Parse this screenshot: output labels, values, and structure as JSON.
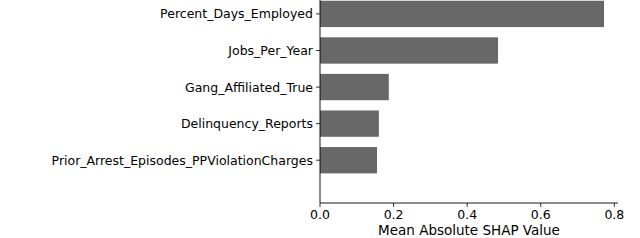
{
  "chart_data": {
    "type": "bar",
    "orientation": "horizontal",
    "categories": [
      "Percent_Days_Employed",
      "Jobs_Per_Year",
      "Gang_Affiliated_True",
      "Delinquency_Reports",
      "Prior_Arrest_Episodes_PPViolationCharges"
    ],
    "values": [
      0.772,
      0.484,
      0.187,
      0.16,
      0.155
    ],
    "color": "#686868",
    "xlabel": "Mean Absolute SHAP Value",
    "xlim": [
      0,
      0.81
    ],
    "xticks": [
      {
        "value": 0,
        "label": "0.0"
      },
      {
        "value": 0.2,
        "label": "0.2"
      },
      {
        "value": 0.4,
        "label": "0.4"
      },
      {
        "value": 0.6,
        "label": "0.6"
      },
      {
        "value": 0.8,
        "label": "0.8"
      }
    ],
    "grid": false
  }
}
